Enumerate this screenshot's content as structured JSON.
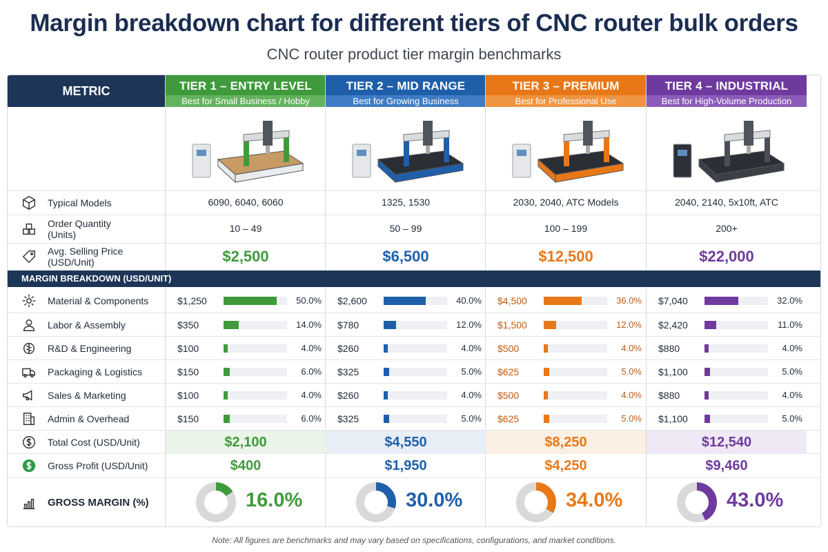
{
  "title": "Margin breakdown chart for different tiers of CNC router bulk orders",
  "subtitle": "CNC router product tier margin benchmarks",
  "metric_header": "METRIC",
  "tiers": [
    {
      "name": "TIER 1 – ENTRY LEVEL",
      "sub": "Best for Small Business / Hobby",
      "color": "#3f9a3c",
      "sub_color": "#63b25c",
      "light": "#eaf4e8"
    },
    {
      "name": "TIER 2 – MID RANGE",
      "sub": "Best for Growing Business",
      "color": "#1f5faa",
      "sub_color": "#3f7cc4",
      "light": "#e8eef6"
    },
    {
      "name": "TIER 3 – PREMIUM",
      "sub": "Best for Professional Use",
      "color": "#e87817",
      "sub_color": "#ef9440",
      "light": "#fcefe3"
    },
    {
      "name": "TIER 4 – INDUSTRIAL",
      "sub": "Best for High-Volume Production",
      "color": "#6f3a9e",
      "sub_color": "#8a5cb8",
      "light": "#efe8f5"
    }
  ],
  "rows": {
    "typical_models": {
      "label": "Typical Models",
      "values": [
        "6090, 6040, 6060",
        "1325, 1530",
        "2030, 2040, ATC Models",
        "2040, 2140, 5x10ft, ATC"
      ]
    },
    "order_quantity": {
      "label": "Order Quantity (Units)",
      "values": [
        "10 – 49",
        "50 – 99",
        "100 – 199",
        "200+"
      ]
    },
    "avg_price": {
      "label": "Avg. Selling Price (USD/Unit)",
      "values": [
        "$2,500",
        "$6,500",
        "$12,500",
        "$22,000"
      ]
    }
  },
  "section_label": "MARGIN BREAKDOWN (USD/UNIT)",
  "chart_data": {
    "type": "bar",
    "categories": [
      "Material & Components",
      "Labor & Assembly",
      "R&D & Engineering",
      "Packaging & Logistics",
      "Sales & Marketing",
      "Admin & Overhead"
    ],
    "series": [
      {
        "amounts": [
          "$1,250",
          "$350",
          "$100",
          "$150",
          "$100",
          "$150"
        ],
        "values": [
          50.0,
          14.0,
          4.0,
          6.0,
          4.0,
          6.0
        ]
      },
      {
        "amounts": [
          "$2,600",
          "$780",
          "$260",
          "$325",
          "$260",
          "$325"
        ],
        "values": [
          40.0,
          12.0,
          4.0,
          5.0,
          4.0,
          5.0
        ]
      },
      {
        "amounts": [
          "$4,500",
          "$1,500",
          "$500",
          "$625",
          "$500",
          "$625"
        ],
        "values": [
          36.0,
          12.0,
          4.0,
          5.0,
          4.0,
          5.0
        ]
      },
      {
        "amounts": [
          "$7,040",
          "$2,420",
          "$880",
          "$1,100",
          "$880",
          "$1,100"
        ],
        "values": [
          32.0,
          11.0,
          4.0,
          5.0,
          4.0,
          5.0
        ]
      }
    ],
    "pct_labels": [
      [
        "50.0%",
        "14.0%",
        "4.0%",
        "6.0%",
        "4.0%",
        "6.0%"
      ],
      [
        "40.0%",
        "12.0%",
        "4.0%",
        "5.0%",
        "4.0%",
        "5.0%"
      ],
      [
        "36.0%",
        "12.0%",
        "4.0%",
        "5.0%",
        "4.0%",
        "5.0%"
      ],
      [
        "32.0%",
        "11.0%",
        "4.0%",
        "5.0%",
        "4.0%",
        "5.0%"
      ]
    ],
    "ylim": [
      0,
      60
    ],
    "total_cost": {
      "label": "Total Cost (USD/Unit)",
      "values": [
        "$2,100",
        "$4,550",
        "$8,250",
        "$12,540"
      ]
    },
    "gross_profit": {
      "label": "Gross Profit (USD/Unit)",
      "values": [
        "$400",
        "$1,950",
        "$4,250",
        "$9,460"
      ]
    },
    "gross_margin": {
      "label": "GROSS MARGIN (%)",
      "values": [
        16.0,
        30.0,
        34.0,
        43.0
      ],
      "labels": [
        "16.0%",
        "30.0%",
        "34.0%",
        "43.0%"
      ]
    }
  },
  "icons": [
    "cube-icon",
    "boxes-icon",
    "price-tag-icon",
    "gear-icon",
    "worker-icon",
    "brain-icon",
    "truck-icon",
    "megaphone-icon",
    "building-icon",
    "dollar-circle-icon",
    "dollar-coin-icon",
    "bar-chart-icon"
  ],
  "note": "Note: All figures are benchmarks and may vary based on specifications, configurations, and market conditions."
}
